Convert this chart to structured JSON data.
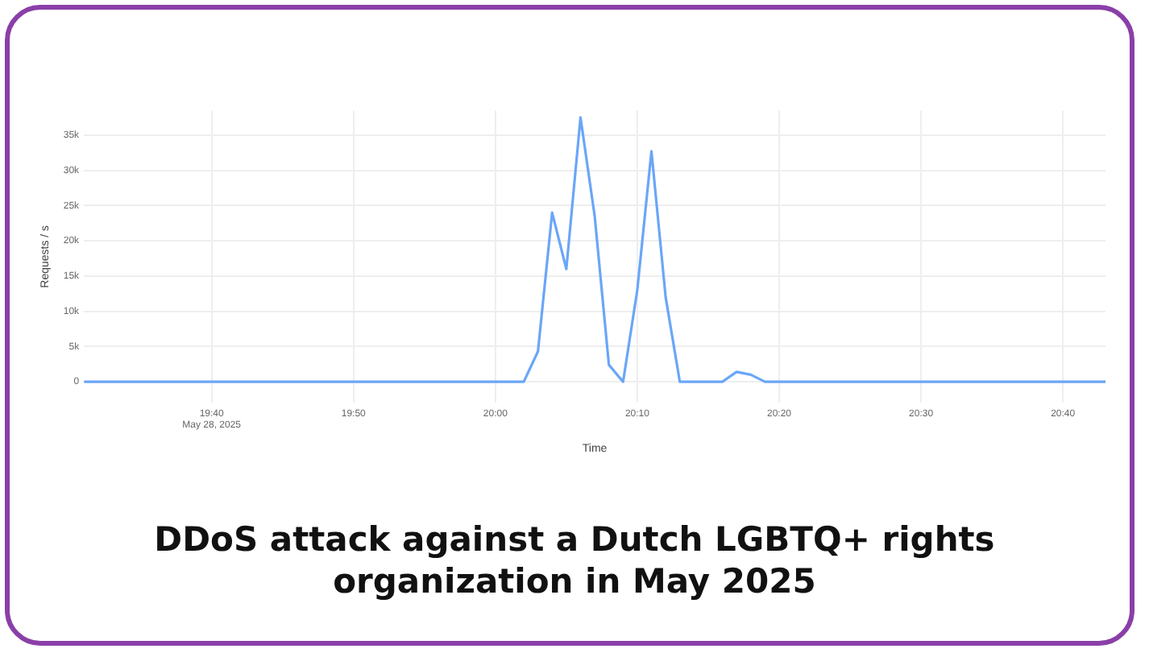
{
  "chart_data": {
    "type": "line",
    "title": "DDoS attack against a Dutch LGBTQ+ rights organization in May 2025",
    "xlabel": "Time",
    "ylabel": "Requests / s",
    "x": [
      "2025-05-28T19:31",
      "2025-05-28T20:02",
      "2025-05-28T20:03",
      "2025-05-28T20:04",
      "2025-05-28T20:05",
      "2025-05-28T20:06",
      "2025-05-28T20:07",
      "2025-05-28T20:08",
      "2025-05-28T20:09",
      "2025-05-28T20:10",
      "2025-05-28T20:11",
      "2025-05-28T20:12",
      "2025-05-28T20:13",
      "2025-05-28T20:16",
      "2025-05-28T20:17",
      "2025-05-28T20:18",
      "2025-05-28T20:19",
      "2025-05-28T20:43"
    ],
    "series": [
      {
        "color": "#6aa6f8",
        "values": [
          0,
          0,
          4300,
          24000,
          16000,
          37500,
          23500,
          2400,
          0,
          13000,
          32700,
          12000,
          0,
          0,
          1400,
          1000,
          0,
          0
        ]
      }
    ],
    "xlim": [
      "2025-05-28T19:31",
      "2025-05-28T20:43"
    ],
    "xticks": [
      {
        "value": "2025-05-28T19:40",
        "label": "19:40\nMay 28, 2025"
      },
      {
        "value": "2025-05-28T19:50",
        "label": "19:50"
      },
      {
        "value": "2025-05-28T20:00",
        "label": "20:00"
      },
      {
        "value": "2025-05-28T20:10",
        "label": "20:10"
      },
      {
        "value": "2025-05-28T20:20",
        "label": "20:20"
      },
      {
        "value": "2025-05-28T20:30",
        "label": "20:30"
      },
      {
        "value": "2025-05-28T20:40",
        "label": "20:40"
      }
    ],
    "ylim": [
      -3000,
      38500
    ],
    "yticks": [
      0,
      {
        "value": 5000,
        "label": "5k"
      },
      {
        "value": 10000,
        "label": "10k"
      },
      {
        "value": 15000,
        "label": "15k"
      },
      {
        "value": 20000,
        "label": "20k"
      },
      {
        "value": 25000,
        "label": "25k"
      },
      {
        "value": 30000,
        "label": "30k"
      },
      {
        "value": 35000,
        "label": "35k"
      }
    ],
    "grid": true,
    "legend": false,
    "marker": "none",
    "line_style": "solid"
  }
}
